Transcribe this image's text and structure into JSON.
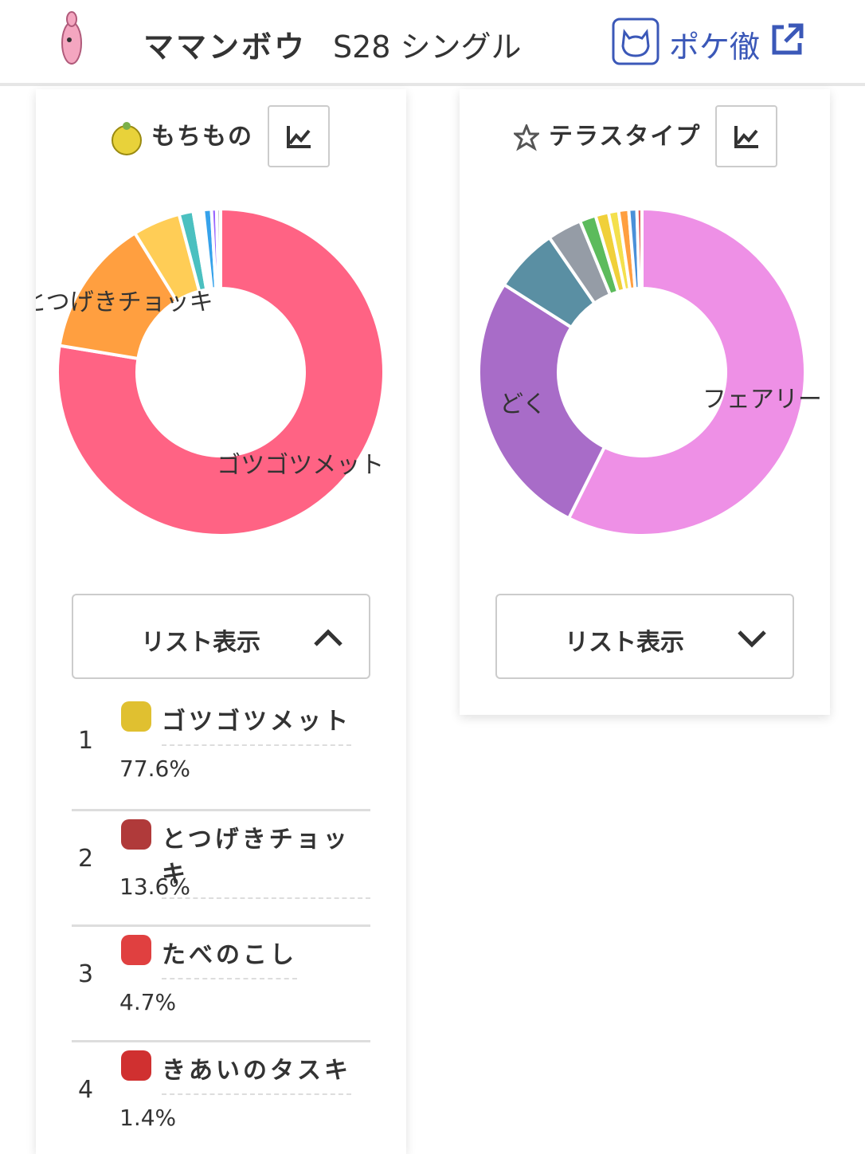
{
  "header": {
    "title": "ママンボウ",
    "subtitle": "S28 シングル",
    "link": "ポケ徹"
  },
  "panels": [
    {
      "title": "もちもの",
      "chart": {
        "type": "donut",
        "labels": [
          "ゴツゴツメット",
          "とつげきチョッキ",
          null,
          null,
          null,
          null,
          null,
          null
        ],
        "values": [
          77.6,
          13.6,
          4.7,
          1.4,
          1.0,
          0.8,
          0.5,
          0.4
        ],
        "colors": [
          "#ff6384",
          "#ff9f40",
          "#ffcd56",
          "#4bc0c0",
          "#ffffff",
          "#36a2eb",
          "#9966ff",
          "#c9cbcf"
        ]
      },
      "button": "リスト表示",
      "list": [
        {
          "rank": 1,
          "name": "ゴツゴツメット",
          "percent": "77.6%"
        },
        {
          "rank": 2,
          "name": "とつげきチョッキ",
          "percent": "13.6%"
        },
        {
          "rank": 3,
          "name": "たべのこし",
          "percent": "4.7%"
        },
        {
          "rank": 4,
          "name": "きあいのタスキ",
          "percent": "1.4%"
        }
      ]
    },
    {
      "title": "テラスタイプ",
      "chart": {
        "type": "donut",
        "labels": [
          "フェアリー",
          "どく",
          null,
          null,
          null,
          null,
          null,
          null,
          null,
          null
        ],
        "values": [
          57.4,
          26.6,
          6.4,
          3.4,
          1.6,
          1.3,
          1.0,
          1.0,
          0.8,
          0.5
        ],
        "colors": [
          "#ee90e6",
          "#a86cc8",
          "#5a8fa3",
          "#959ca6",
          "#5cbb5c",
          "#f0d03a",
          "#f4e04d",
          "#ff9f40",
          "#4a90d9",
          "#e06060"
        ]
      },
      "button": "リスト表示"
    }
  ]
}
